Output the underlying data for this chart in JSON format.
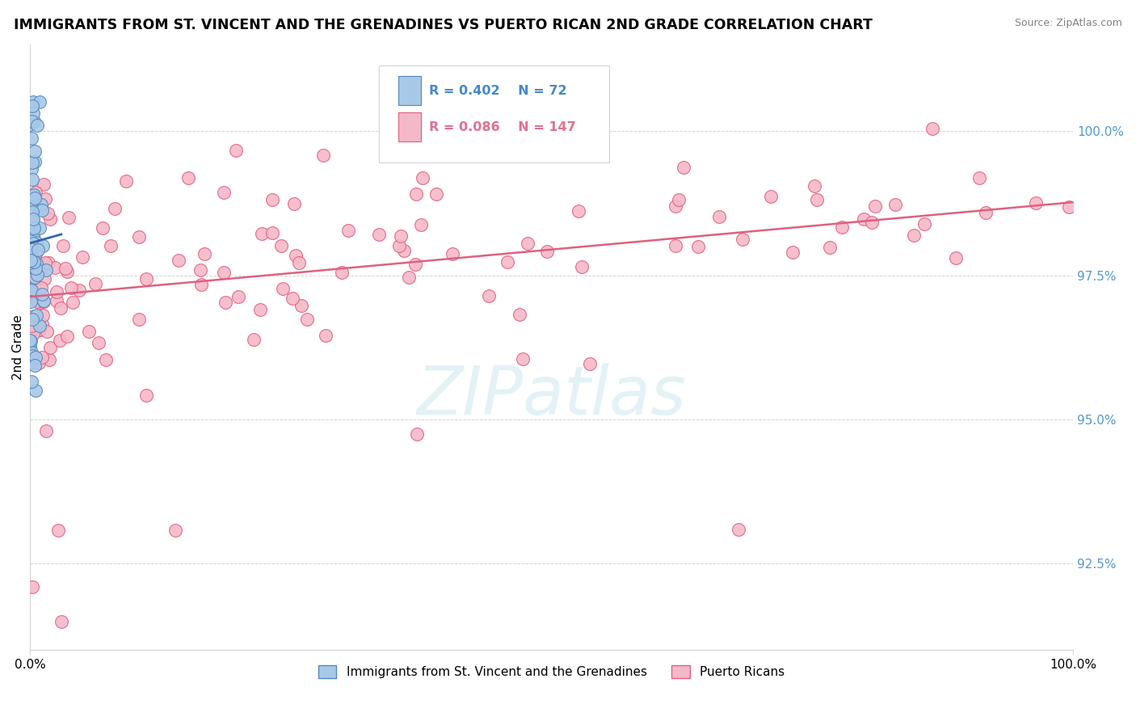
{
  "title": "IMMIGRANTS FROM ST. VINCENT AND THE GRENADINES VS PUERTO RICAN 2ND GRADE CORRELATION CHART",
  "source": "Source: ZipAtlas.com",
  "ylabel": "2nd Grade",
  "yaxis_labels": [
    "92.5%",
    "95.0%",
    "97.5%",
    "100.0%"
  ],
  "yaxis_values": [
    92.5,
    95.0,
    97.5,
    100.0
  ],
  "xlim": [
    0.0,
    100.0
  ],
  "ylim": [
    91.0,
    101.5
  ],
  "blue_R": 0.402,
  "blue_N": 72,
  "pink_R": 0.086,
  "pink_N": 147,
  "blue_color": "#a8c8e8",
  "pink_color": "#f4b8c8",
  "blue_edge_color": "#5588bb",
  "pink_edge_color": "#e06080",
  "blue_line_color": "#3366aa",
  "pink_line_color": "#e06080",
  "legend_label_blue": "Immigrants from St. Vincent and the Grenadines",
  "legend_label_pink": "Puerto Ricans",
  "watermark": "ZIPatlas",
  "legend_R_color_blue": "#4488cc",
  "legend_R_color_pink": "#e07090"
}
